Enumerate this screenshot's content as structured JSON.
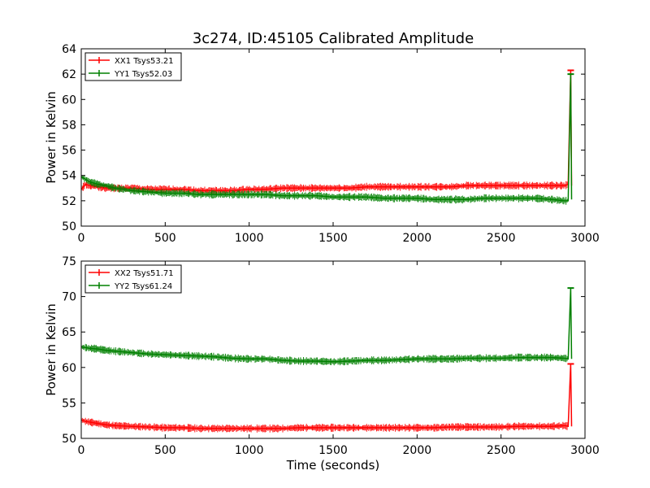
{
  "figure": {
    "title": "3c274, ID:45105 Calibrated Amplitude",
    "xlabel": "Time (seconds)"
  },
  "colors": {
    "red": "#ff0000",
    "green": "#008000"
  },
  "chart_data": [
    {
      "type": "line",
      "title": "3c274, ID:45105 Calibrated Amplitude",
      "xlabel": "",
      "ylabel": "Power in Kelvin",
      "xlim": [
        0,
        3000
      ],
      "ylim": [
        50,
        64
      ],
      "xticks": [
        "0",
        "500",
        "1000",
        "1500",
        "2000",
        "2500",
        "3000"
      ],
      "yticks": [
        "50",
        "52",
        "54",
        "56",
        "58",
        "60",
        "62",
        "64"
      ],
      "legend_position": "top-left",
      "grid": false,
      "series": [
        {
          "name": "XX1 Tsys53.21",
          "color": "#ff0000",
          "x": [
            0,
            25,
            50,
            100,
            150,
            200,
            300,
            400,
            500,
            600,
            700,
            800,
            900,
            1000,
            1100,
            1200,
            1300,
            1400,
            1500,
            1600,
            1700,
            1800,
            1900,
            2000,
            2100,
            2200,
            2300,
            2400,
            2500,
            2600,
            2700,
            2800,
            2880,
            2900,
            2915,
            2920
          ],
          "y": [
            52.9,
            53.3,
            53.2,
            53.1,
            53.0,
            53.0,
            53.0,
            52.9,
            52.9,
            52.9,
            52.8,
            52.8,
            52.8,
            52.9,
            52.9,
            53.0,
            53.0,
            53.0,
            53.0,
            53.0,
            53.1,
            53.1,
            53.1,
            53.1,
            53.1,
            53.1,
            53.2,
            53.2,
            53.2,
            53.2,
            53.2,
            53.2,
            53.2,
            53.3,
            62.3,
            53.2
          ]
        },
        {
          "name": "YY1 Tsys52.03",
          "color": "#008000",
          "x": [
            0,
            25,
            50,
            100,
            150,
            200,
            300,
            400,
            500,
            600,
            700,
            800,
            900,
            1000,
            1100,
            1200,
            1300,
            1400,
            1500,
            1600,
            1700,
            1800,
            1900,
            2000,
            2100,
            2200,
            2300,
            2400,
            2500,
            2600,
            2700,
            2800,
            2880,
            2900,
            2915,
            2920
          ],
          "y": [
            53.9,
            53.7,
            53.5,
            53.3,
            53.2,
            53.0,
            52.8,
            52.7,
            52.6,
            52.6,
            52.5,
            52.5,
            52.5,
            52.5,
            52.5,
            52.4,
            52.4,
            52.4,
            52.3,
            52.3,
            52.3,
            52.2,
            52.2,
            52.2,
            52.1,
            52.1,
            52.1,
            52.2,
            52.2,
            52.2,
            52.2,
            52.1,
            52.0,
            52.0,
            62.0,
            52.1
          ]
        }
      ]
    },
    {
      "type": "line",
      "title": "",
      "xlabel": "Time (seconds)",
      "ylabel": "Power in Kelvin",
      "xlim": [
        0,
        3000
      ],
      "ylim": [
        50,
        75
      ],
      "xticks": [
        "0",
        "500",
        "1000",
        "1500",
        "2000",
        "2500",
        "3000"
      ],
      "yticks": [
        "50",
        "55",
        "60",
        "65",
        "70",
        "75"
      ],
      "legend_position": "top-left",
      "grid": false,
      "series": [
        {
          "name": "XX2 Tsys51.71",
          "color": "#ff0000",
          "x": [
            0,
            25,
            50,
            100,
            150,
            200,
            300,
            400,
            500,
            600,
            700,
            800,
            900,
            1000,
            1100,
            1200,
            1300,
            1400,
            1500,
            1600,
            1700,
            1800,
            1900,
            2000,
            2100,
            2200,
            2300,
            2400,
            2500,
            2600,
            2700,
            2800,
            2880,
            2900,
            2915,
            2920
          ],
          "y": [
            52.6,
            52.4,
            52.3,
            52.1,
            51.9,
            51.8,
            51.7,
            51.6,
            51.5,
            51.5,
            51.4,
            51.4,
            51.4,
            51.4,
            51.4,
            51.4,
            51.5,
            51.5,
            51.5,
            51.5,
            51.5,
            51.5,
            51.5,
            51.5,
            51.5,
            51.6,
            51.6,
            51.6,
            51.6,
            51.7,
            51.7,
            51.7,
            51.8,
            51.7,
            60.5,
            51.7
          ]
        },
        {
          "name": "YY2 Tsys61.24",
          "color": "#008000",
          "x": [
            0,
            25,
            50,
            100,
            150,
            200,
            300,
            400,
            500,
            600,
            700,
            800,
            900,
            1000,
            1100,
            1200,
            1300,
            1400,
            1500,
            1600,
            1700,
            1800,
            1900,
            2000,
            2100,
            2200,
            2300,
            2400,
            2500,
            2600,
            2700,
            2800,
            2880,
            2900,
            2915,
            2920
          ],
          "y": [
            62.9,
            62.8,
            62.7,
            62.6,
            62.4,
            62.3,
            62.1,
            61.9,
            61.8,
            61.7,
            61.6,
            61.5,
            61.3,
            61.2,
            61.2,
            61.0,
            60.9,
            60.9,
            60.8,
            60.9,
            61.0,
            61.0,
            61.1,
            61.2,
            61.2,
            61.2,
            61.3,
            61.3,
            61.3,
            61.4,
            61.4,
            61.4,
            61.3,
            61.2,
            71.2,
            61.2
          ]
        }
      ]
    }
  ]
}
